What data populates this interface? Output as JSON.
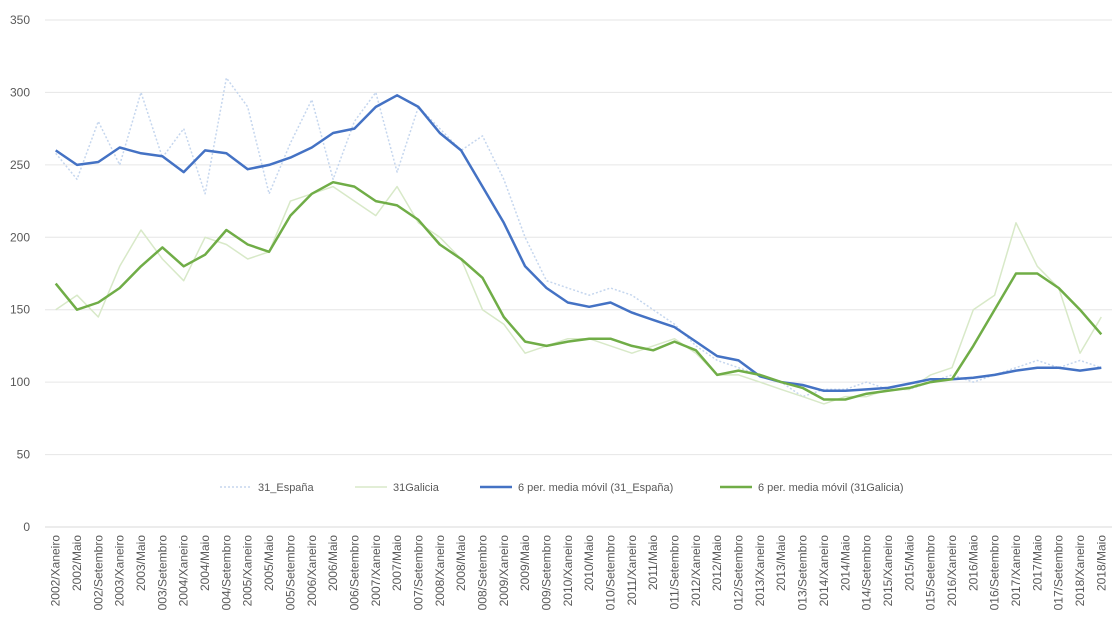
{
  "chart_data": {
    "type": "line",
    "ylim": [
      0,
      350
    ],
    "yticks": [
      0,
      50,
      100,
      150,
      200,
      250,
      300,
      350
    ],
    "grid": true,
    "legend_position": "inside-bottom-center",
    "categories": [
      "2002/Xaneiro",
      "2002/Maio",
      "002/Setembro",
      "2003/Xaneiro",
      "2003/Maio",
      "003/Setembro",
      "2004/Xaneiro",
      "2004/Maio",
      "004/Setembro",
      "2005/Xaneiro",
      "2005/Maio",
      "005/Setembro",
      "2006/Xaneiro",
      "2006/Maio",
      "006/Setembro",
      "2007/Xaneiro",
      "2007/Maio",
      "007/Setembro",
      "2008/Xaneiro",
      "2008/Maio",
      "008/Setembro",
      "2009/Xaneiro",
      "2009/Maio",
      "009/Setembro",
      "2010/Xaneiro",
      "2010/Maio",
      "010/Setembro",
      "2011/Xaneiro",
      "2011/Maio",
      "011/Setembro",
      "2012/Xaneiro",
      "2012/Maio",
      "012/Setembro",
      "2013/Xaneiro",
      "2013/Maio",
      "013/Setembro",
      "2014/Xaneiro",
      "2014/Maio",
      "014/Setembro",
      "2015/Xaneiro",
      "2015/Maio",
      "015/Setembro",
      "2016/Xaneiro",
      "2016/Maio",
      "016/Setembro",
      "2017/Xaneiro",
      "2017/Maio",
      "017/Setembro",
      "2018/Xaneiro",
      "2018/Maio"
    ],
    "series": [
      {
        "name": "31_España",
        "color": "#c5d6ee",
        "style": "dotted",
        "values": [
          258,
          240,
          280,
          250,
          300,
          255,
          275,
          230,
          310,
          290,
          230,
          265,
          295,
          240,
          280,
          300,
          245,
          290,
          275,
          260,
          270,
          240,
          200,
          170,
          165,
          160,
          165,
          160,
          150,
          140,
          125,
          115,
          110,
          105,
          100,
          90,
          95,
          95,
          100,
          95,
          95,
          100,
          105,
          100,
          105,
          110,
          115,
          110,
          115,
          110
        ]
      },
      {
        "name": "31Galicia",
        "color": "#d8e9c8",
        "style": "solid",
        "values": [
          150,
          160,
          145,
          180,
          205,
          185,
          170,
          200,
          195,
          185,
          190,
          225,
          230,
          235,
          225,
          215,
          235,
          210,
          200,
          185,
          150,
          140,
          120,
          125,
          130,
          130,
          125,
          120,
          125,
          130,
          120,
          105,
          105,
          100,
          95,
          90,
          85,
          90,
          90,
          95,
          95,
          105,
          110,
          150,
          160,
          210,
          180,
          165,
          120,
          145
        ]
      },
      {
        "name": "6 per. media móvil (31_España)",
        "color": "#4472c4",
        "style": "solid",
        "values": [
          260,
          250,
          252,
          262,
          258,
          256,
          245,
          260,
          258,
          247,
          250,
          255,
          262,
          272,
          275,
          290,
          298,
          290,
          272,
          260,
          235,
          210,
          180,
          165,
          155,
          152,
          155,
          148,
          143,
          138,
          128,
          118,
          115,
          104,
          100,
          98,
          94,
          94,
          95,
          96,
          99,
          102,
          102,
          103,
          105,
          108,
          110,
          110,
          108,
          110
        ]
      },
      {
        "name": "6 per. media móvil (31Galicia)",
        "color": "#70ad47",
        "style": "solid",
        "values": [
          168,
          150,
          155,
          165,
          180,
          193,
          180,
          188,
          205,
          195,
          190,
          215,
          230,
          238,
          235,
          225,
          222,
          212,
          195,
          185,
          172,
          145,
          128,
          125,
          128,
          130,
          130,
          125,
          122,
          128,
          122,
          105,
          108,
          105,
          100,
          96,
          88,
          88,
          92,
          94,
          96,
          100,
          102,
          125,
          150,
          175,
          175,
          165,
          150,
          133
        ]
      }
    ]
  }
}
